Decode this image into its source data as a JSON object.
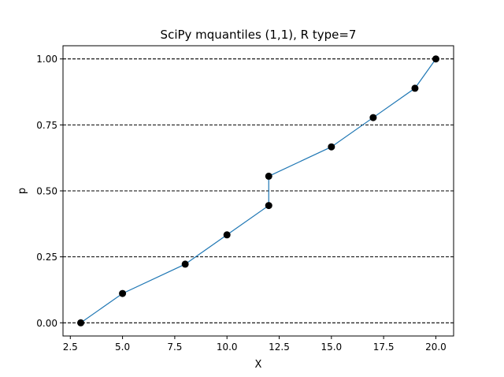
{
  "chart_data": {
    "type": "line",
    "title": "SciPy mquantiles (1,1), R type=7",
    "xlabel": "X",
    "ylabel": "p",
    "xlim": [
      2.15,
      20.85
    ],
    "ylim": [
      -0.05,
      1.05
    ],
    "x_ticks": [
      2.5,
      5.0,
      7.5,
      10.0,
      12.5,
      15.0,
      17.5,
      20.0
    ],
    "x_tick_labels": [
      "2.5",
      "5.0",
      "7.5",
      "10.0",
      "12.5",
      "15.0",
      "17.5",
      "20.0"
    ],
    "y_ticks": [
      0.0,
      0.25,
      0.5,
      0.75,
      1.0
    ],
    "y_tick_labels": [
      "0.00",
      "0.25",
      "0.50",
      "0.75",
      "1.00"
    ],
    "grid": "horizontal dashed lines at y ticks",
    "series": [
      {
        "x": [
          3,
          5,
          8,
          10,
          12,
          12,
          15,
          17,
          19,
          20
        ],
        "y": [
          0.0,
          0.1111,
          0.2222,
          0.3333,
          0.4444,
          0.5556,
          0.6667,
          0.7778,
          0.8889,
          1.0
        ],
        "line_color": "#1f77b4",
        "marker_color": "#000000"
      }
    ]
  }
}
